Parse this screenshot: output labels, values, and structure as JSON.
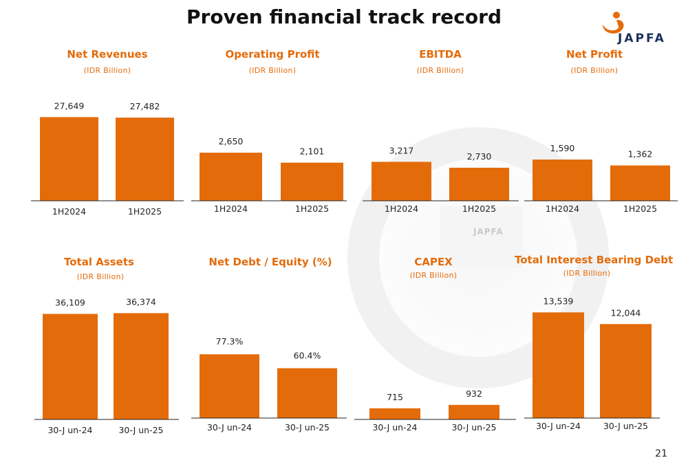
{
  "page": {
    "title": "Proven financial track record",
    "page_number": "21",
    "logo_text": "JAPFA",
    "background_logo_text": "JAPFA",
    "accent_color": "#e46b0a"
  },
  "chart_data": [
    {
      "type": "bar",
      "title": "Net Revenues",
      "subtitle": "(IDR Billion)",
      "categories": [
        "1H2024",
        "1H2025"
      ],
      "values": [
        27649,
        27482
      ],
      "value_labels": [
        "27,649",
        "27,482"
      ],
      "ylim": [
        0,
        30000
      ],
      "color": "#e46b0a"
    },
    {
      "type": "bar",
      "title": "Operating Profit",
      "subtitle": "(IDR Billion)",
      "categories": [
        "1H2024",
        "1H2025"
      ],
      "values": [
        2650,
        2101
      ],
      "value_labels": [
        "2,650",
        "2,101"
      ],
      "ylim": [
        0,
        5000
      ],
      "color": "#e46b0a"
    },
    {
      "type": "bar",
      "title": "EBITDA",
      "subtitle": "(IDR Billion)",
      "categories": [
        "1H2024",
        "1H2025"
      ],
      "values": [
        3217,
        2730
      ],
      "value_labels": [
        "3,217",
        "2,730"
      ],
      "ylim": [
        0,
        7500
      ],
      "color": "#e46b0a"
    },
    {
      "type": "bar",
      "title": "Net Profit",
      "subtitle": "(IDR Billion)",
      "categories": [
        "1H2024",
        "1H2025"
      ],
      "values": [
        1590,
        1362
      ],
      "value_labels": [
        "1,590",
        "1,362"
      ],
      "ylim": [
        0,
        3500
      ],
      "color": "#e46b0a"
    },
    {
      "type": "bar",
      "title": "Total Assets",
      "subtitle": "(IDR Billion)",
      "categories": [
        "30-J un-24",
        "30-J un-25"
      ],
      "values": [
        36109,
        36374
      ],
      "value_labels": [
        "36,109",
        "36,374"
      ],
      "ylim": [
        0,
        40000
      ],
      "color": "#e46b0a"
    },
    {
      "type": "bar",
      "title": "Net Debt / Equity (%)",
      "subtitle": "",
      "categories": [
        "30-J un-24",
        "30-J un-25"
      ],
      "values": [
        77.3,
        60.4
      ],
      "value_labels": [
        "77.3%",
        "60.4%"
      ],
      "ylim": [
        0,
        140
      ],
      "color": "#e46b0a"
    },
    {
      "type": "bar",
      "title": "CAPEX",
      "subtitle": "(IDR Billion)",
      "categories": [
        "30-J un-24",
        "30-J un-25"
      ],
      "values": [
        715,
        932
      ],
      "value_labels": [
        "715",
        "932"
      ],
      "ylim": [
        0,
        7500
      ],
      "color": "#e46b0a"
    },
    {
      "type": "bar",
      "title": "Total Interest Bearing Debt",
      "subtitle": "(IDR Billion)",
      "categories": [
        "30-J un-24",
        "30-J un-25"
      ],
      "values": [
        13539,
        12044
      ],
      "value_labels": [
        "13,539",
        "12,044"
      ],
      "ylim": [
        0,
        14800
      ],
      "color": "#e46b0a"
    }
  ]
}
